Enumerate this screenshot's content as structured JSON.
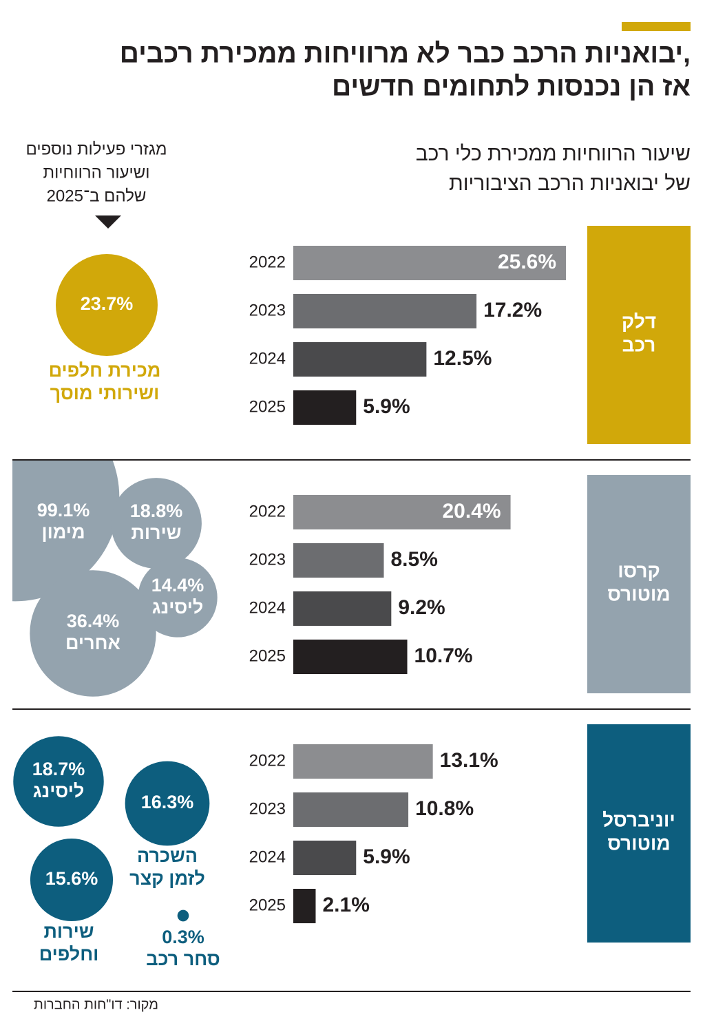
{
  "header": {
    "title": [
      "יבואניות הרכב כבר לא מרוויחות ממכירת רכבים,",
      "אז הן נכנסות לתחומים חדשים"
    ],
    "bars_subtitle": [
      "שיעור הרווחיות ממכירת כלי רכב",
      "של יבואניות הרכב הציבוריות"
    ],
    "bubbles_subtitle": [
      "מגזרי פעילות נוספים",
      "ושיעור הרווחיות",
      "שלהם ב־2025"
    ]
  },
  "companies": [
    {
      "name": [
        "דלק",
        "רכב"
      ],
      "color": "#d1a80a",
      "bars": {
        "years": [
          "2022",
          "2023",
          "2024",
          "2025"
        ],
        "values": [
          25.6,
          17.2,
          12.5,
          5.9
        ],
        "value_labels": [
          "25.6%",
          "17.2%",
          "12.5%",
          "5.9%"
        ]
      },
      "bubbles": [
        {
          "value": 23.7,
          "value_label": "23.7%",
          "name": [
            "מכירת חלפים",
            "ושירותי מוסך"
          ]
        }
      ]
    },
    {
      "name": [
        "קרסו",
        "מוטורס"
      ],
      "color": "#94a3ae",
      "bars": {
        "years": [
          "2022",
          "2023",
          "2024",
          "2025"
        ],
        "values": [
          20.4,
          8.5,
          9.2,
          10.7
        ],
        "value_labels": [
          "20.4%",
          "8.5%",
          "9.2%",
          "10.7%"
        ]
      },
      "bubbles": [
        {
          "value": 99.1,
          "value_label": "99.1%",
          "name": [
            "מימון"
          ]
        },
        {
          "value": 18.8,
          "value_label": "18.8%",
          "name": [
            "שירות"
          ]
        },
        {
          "value": 14.4,
          "value_label": "14.4%",
          "name": [
            "ליסינג"
          ]
        },
        {
          "value": 36.4,
          "value_label": "36.4%",
          "name": [
            "אחרים"
          ]
        }
      ]
    },
    {
      "name": [
        "יוניברסל",
        "מוטורס"
      ],
      "color": "#0d5e7e",
      "bars": {
        "years": [
          "2022",
          "2023",
          "2024",
          "2025"
        ],
        "values": [
          13.1,
          10.8,
          5.9,
          2.1
        ],
        "value_labels": [
          "13.1%",
          "10.8%",
          "5.9%",
          "2.1%"
        ]
      },
      "bubbles": [
        {
          "value": 18.7,
          "value_label": "18.7%",
          "name": [
            "ליסינג"
          ]
        },
        {
          "value": 16.3,
          "value_label": "16.3%",
          "name": [
            "השכרה",
            "לזמן קצר"
          ]
        },
        {
          "value": 15.6,
          "value_label": "15.6%",
          "name": [
            "שירות",
            "וחלפים"
          ]
        },
        {
          "value": 0.3,
          "value_label": "0.3%",
          "name": [
            "סחר רכב"
          ]
        }
      ]
    }
  ],
  "source": "מקור: דו\"חות החברות"
}
